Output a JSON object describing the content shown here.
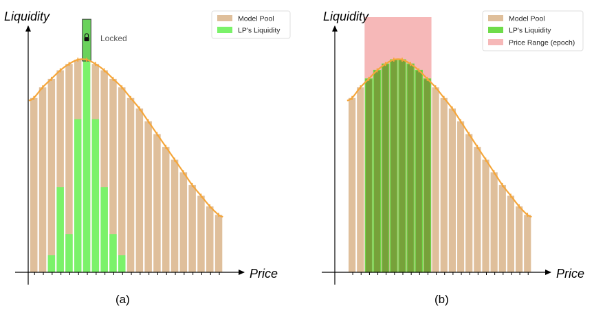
{
  "chart_data": [
    {
      "type": "bar",
      "panel_label": "(a)",
      "xlabel": "Price",
      "ylabel": "Liquidity",
      "annotation": "Locked",
      "legend": {
        "placement": "top-right",
        "entries": [
          "Model Pool",
          "LP's Liquidity"
        ]
      },
      "series": [
        {
          "name": "Model Pool",
          "values": [
            0.82,
            0.87,
            0.91,
            0.95,
            0.98,
            1.0,
            1.0,
            0.98,
            0.95,
            0.91,
            0.87,
            0.82,
            0.77,
            0.71,
            0.65,
            0.59,
            0.53,
            0.47,
            0.41,
            0.36,
            0.31,
            0.27
          ]
        },
        {
          "name": "LP's Liquidity",
          "values": [
            0,
            0,
            0.08,
            0.4,
            0.18,
            0.72,
            1.0,
            0.72,
            0.4,
            0.18,
            0.08,
            0,
            0,
            0,
            0,
            0,
            0,
            0,
            0,
            0,
            0,
            0
          ]
        }
      ],
      "locked_value": 1.19,
      "colors": {
        "pool": "#dfbf9b",
        "lp": "#7bf26a",
        "curve": "#f5a63a",
        "locked": "#6ad25c"
      }
    },
    {
      "type": "bar",
      "panel_label": "(b)",
      "xlabel": "Price",
      "ylabel": "Liquidity",
      "legend": {
        "placement": "top-right",
        "entries": [
          "Model Pool",
          "LP's Liquidity",
          "Price Range (epoch)"
        ]
      },
      "series": [
        {
          "name": "Model Pool",
          "values": [
            0.82,
            0.87,
            0.91,
            0.95,
            0.98,
            1.0,
            1.0,
            0.98,
            0.95,
            0.91,
            0.87,
            0.82,
            0.77,
            0.71,
            0.65,
            0.59,
            0.53,
            0.47,
            0.41,
            0.36,
            0.31,
            0.27
          ]
        },
        {
          "name": "LP's Liquidity",
          "values": [
            0,
            0,
            0.91,
            0.95,
            0.98,
            1.0,
            1.0,
            0.98,
            0.95,
            0.91,
            0,
            0,
            0,
            0,
            0,
            0,
            0,
            0,
            0,
            0,
            0,
            0
          ]
        }
      ],
      "price_range_bins": [
        2,
        9
      ],
      "price_range_top": 1.2,
      "colors": {
        "pool": "#dfbf9b",
        "lp": "#6fdc4a",
        "overlap": "#77a13a",
        "range": "#f6b8b8",
        "curve": "#f5a63a"
      }
    }
  ]
}
